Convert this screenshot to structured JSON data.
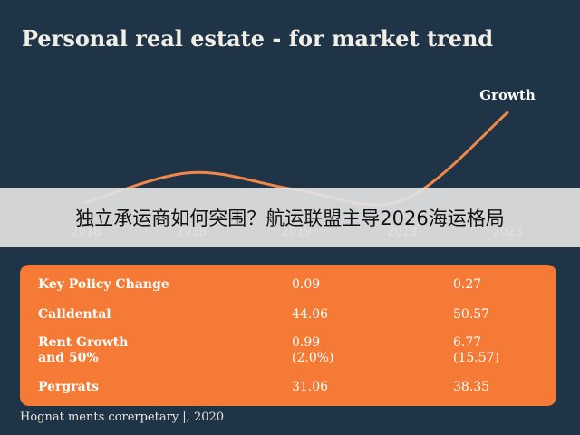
{
  "chart_data": {
    "type": "line",
    "title": "Personal real estate - for market trend",
    "categories": [
      "2018",
      "2018",
      "2019",
      "2018",
      "2023"
    ],
    "series": [
      {
        "name": "Growth",
        "values": [
          1.2,
          2.6,
          1.8,
          1.3,
          5.4
        ]
      }
    ],
    "xlabel": "",
    "ylabel": "",
    "ylim": [
      0,
      6
    ],
    "grid": false,
    "line_color": "#f2874a"
  },
  "overlay_text": "独立承运商如何突围？航运联盟主导2026海运格局",
  "table": {
    "rows": [
      {
        "label": "Key Policy Change",
        "v1": "0.09",
        "v2": "0.27"
      },
      {
        "label": "Calldental",
        "v1": "44.06",
        "v2": "50.57"
      },
      {
        "label": "Rent Growth\nand 50%",
        "v1": "0.99\n(2.0%)",
        "v2": "6.77\n(15.57)"
      },
      {
        "label": "Pergrats",
        "v1": "31.06",
        "v2": "38.35"
      }
    ]
  },
  "footer": "Hognat ments corerpetary |, 2020",
  "colors": {
    "background": "#1f3447",
    "accent": "#f47a35"
  }
}
